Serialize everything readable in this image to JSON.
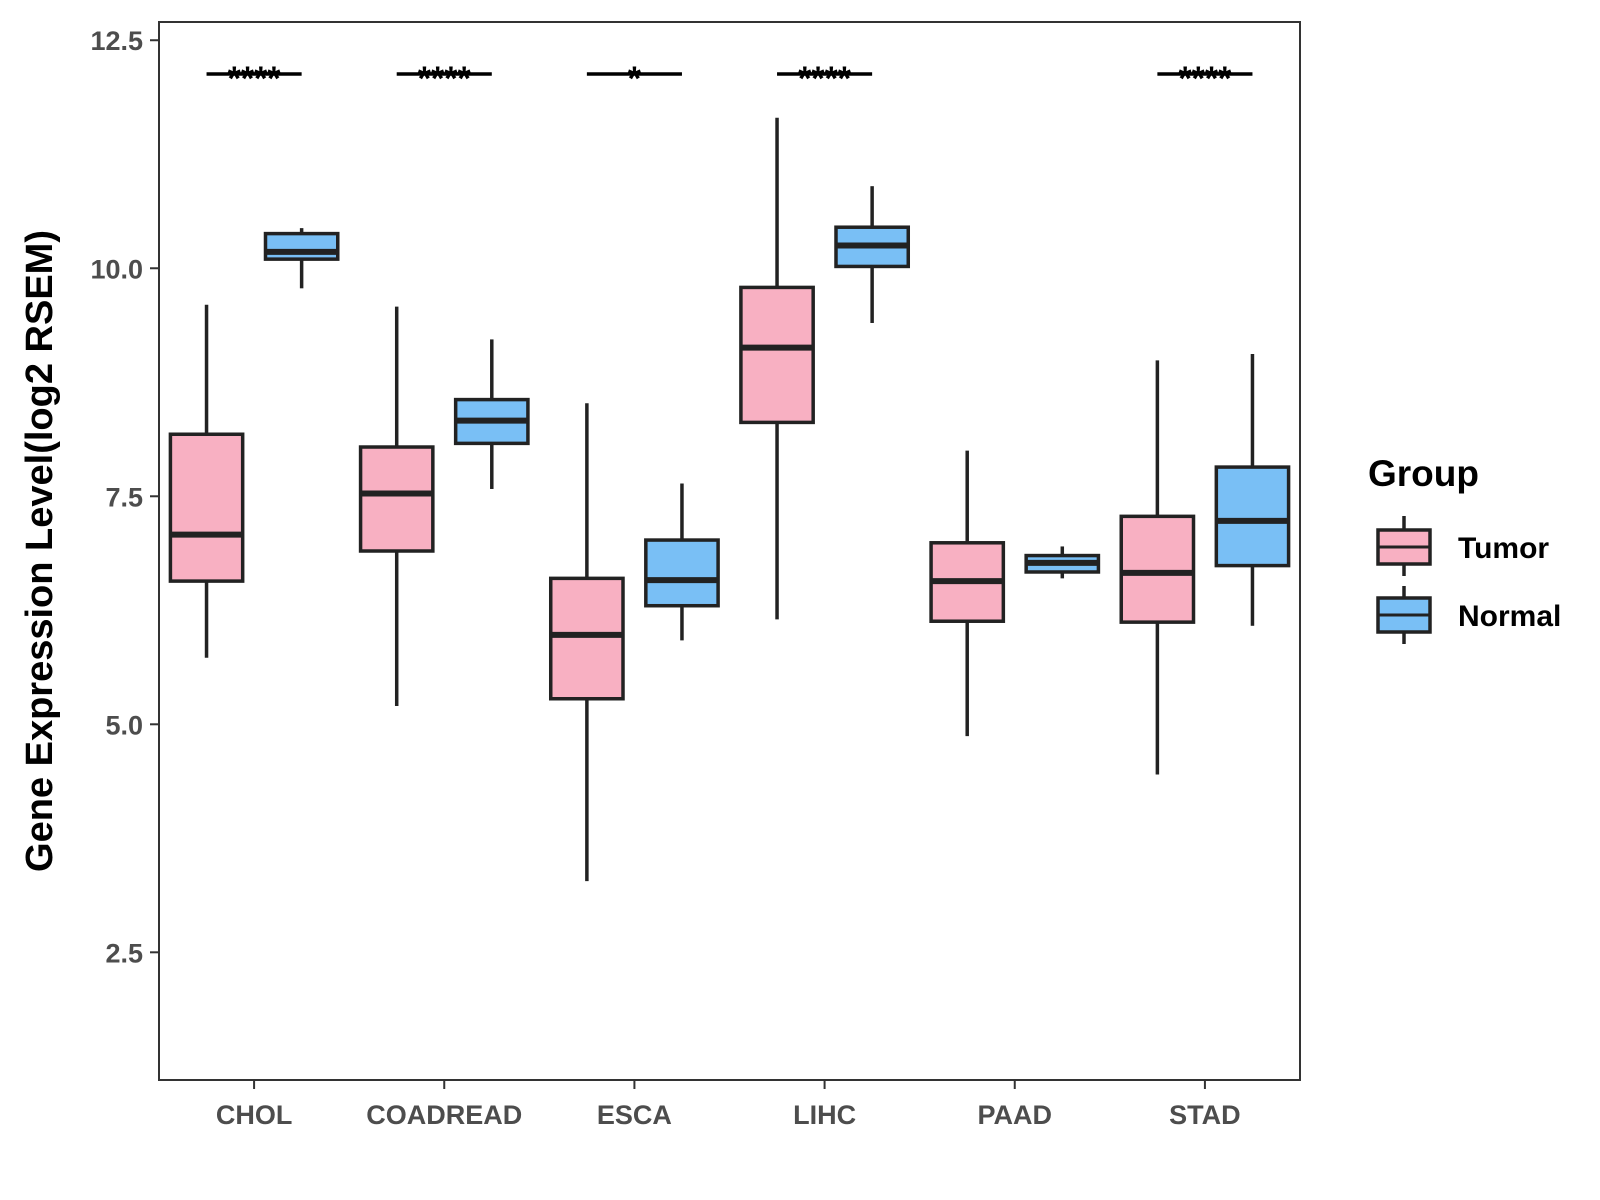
{
  "chart_data": {
    "type": "box",
    "title": "",
    "xlabel": "",
    "ylabel": "Gene Expression Level(log2 RSEM)",
    "ylim": [
      1.1,
      12.7
    ],
    "yticks": [
      2.5,
      5.0,
      7.5,
      10.0,
      12.5
    ],
    "ytick_labels": [
      "2.5",
      "5.0",
      "7.5",
      "10.0",
      "12.5"
    ],
    "grid": false,
    "categories": [
      "CHOL",
      "COADREAD",
      "ESCA",
      "LIHC",
      "PAAD",
      "STAD"
    ],
    "series": [
      {
        "name": "Tumor",
        "color": "#f8b0c2",
        "boxes": [
          {
            "min": 5.73,
            "q1": 6.57,
            "median": 7.08,
            "q3": 8.18,
            "max": 9.6
          },
          {
            "min": 5.2,
            "q1": 6.9,
            "median": 7.53,
            "q3": 8.04,
            "max": 9.58
          },
          {
            "min": 3.28,
            "q1": 5.28,
            "median": 5.98,
            "q3": 6.6,
            "max": 8.52
          },
          {
            "min": 6.15,
            "q1": 8.31,
            "median": 9.13,
            "q3": 9.79,
            "max": 11.65
          },
          {
            "min": 4.87,
            "q1": 6.13,
            "median": 6.57,
            "q3": 6.99,
            "max": 8.0
          },
          {
            "min": 4.45,
            "q1": 6.12,
            "median": 6.66,
            "q3": 7.28,
            "max": 8.99
          }
        ]
      },
      {
        "name": "Normal",
        "color": "#79bff5",
        "boxes": [
          {
            "min": 9.78,
            "q1": 10.1,
            "median": 10.18,
            "q3": 10.38,
            "max": 10.44
          },
          {
            "min": 7.58,
            "q1": 8.08,
            "median": 8.33,
            "q3": 8.56,
            "max": 9.22
          },
          {
            "min": 5.92,
            "q1": 6.3,
            "median": 6.58,
            "q3": 7.02,
            "max": 7.64
          },
          {
            "min": 9.4,
            "q1": 10.02,
            "median": 10.25,
            "q3": 10.45,
            "max": 10.9
          },
          {
            "min": 6.6,
            "q1": 6.67,
            "median": 6.77,
            "q3": 6.85,
            "max": 6.95
          },
          {
            "min": 6.08,
            "q1": 6.74,
            "median": 7.23,
            "q3": 7.82,
            "max": 9.06
          }
        ]
      }
    ],
    "significance": [
      "****",
      "****",
      "*",
      "****",
      "",
      "****"
    ],
    "legend": {
      "title": "Group",
      "position": "right"
    }
  }
}
